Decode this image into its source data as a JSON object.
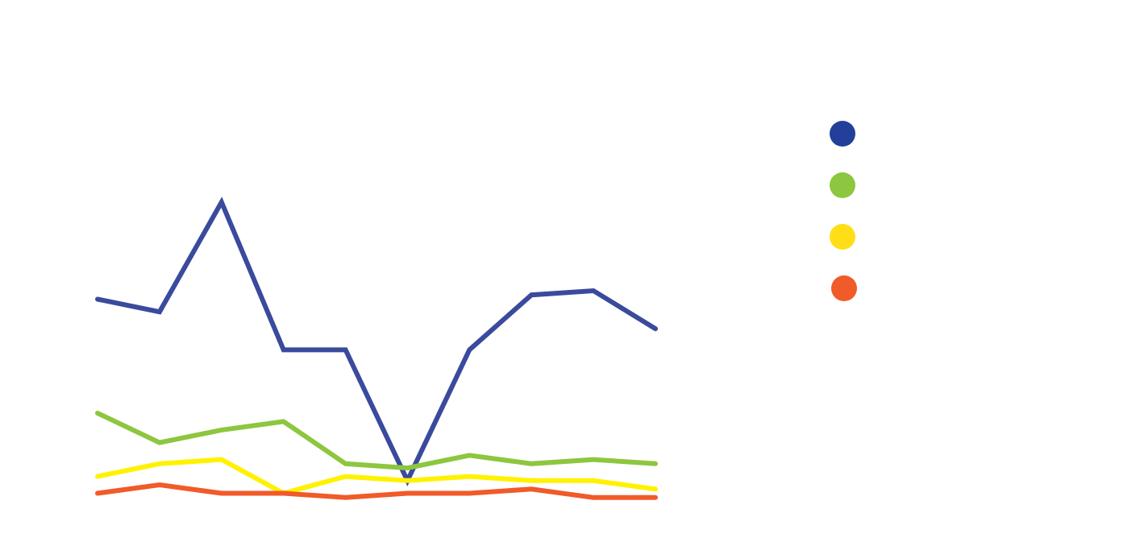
{
  "chart_data": {
    "type": "line",
    "title": "",
    "xlabel": "",
    "ylabel": "",
    "x": [
      1,
      2,
      3,
      4,
      5,
      6,
      7,
      8,
      9,
      10
    ],
    "ylim": [
      0,
      100
    ],
    "grid": false,
    "legend_position": "top-right",
    "series": [
      {
        "color": "#3a4a9c",
        "marker_color": "#22409a",
        "values": [
          48,
          45,
          71,
          36,
          36,
          5,
          36,
          49,
          50,
          41
        ]
      },
      {
        "color": "#8dc63f",
        "marker_color": "#8dc63f",
        "values": [
          21,
          14,
          17,
          19,
          9,
          8,
          11,
          9,
          10,
          9
        ]
      },
      {
        "color": "#fff200",
        "marker_color": "#ffde17",
        "values": [
          6,
          9,
          10,
          2,
          6,
          5,
          6,
          5,
          5,
          3
        ]
      },
      {
        "color": "#f15a29",
        "marker_color": "#f15a29",
        "values": [
          2,
          4,
          2,
          2,
          1,
          2,
          2,
          3,
          1,
          1
        ]
      }
    ]
  }
}
